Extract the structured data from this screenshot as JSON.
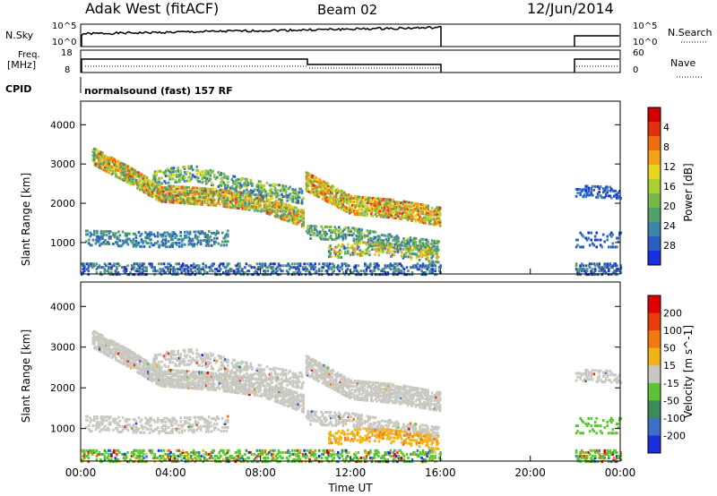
{
  "header": {
    "title": "Adak West (fitACF)",
    "beam": "Beam 02",
    "date": "12/Jun/2014"
  },
  "strip_labels": {
    "nsky": "N.Sky",
    "nsearch": "N.Search",
    "freq_top": "Freq.",
    "freq_unit": "[MHz]",
    "nave": "Nave",
    "cpid": "CPID",
    "cpid_value": "normalsound (fast) 157 RF"
  },
  "noise_axis": {
    "left_top": "10^5",
    "left_bottom": "10^0",
    "right_top": "10^5",
    "right_bottom": "10^0"
  },
  "freq_axis": {
    "left_top": "18",
    "left_bottom": "8",
    "right_top": "60",
    "right_bottom": "0"
  },
  "chart_data": [
    {
      "type": "heatmap",
      "panel": "power",
      "xlabel": "",
      "ylabel": "Slant Range [km]",
      "xlim": [
        0,
        24
      ],
      "ylim": [
        200,
        4600
      ],
      "yticks": [
        "1000",
        "2000",
        "3000",
        "4000"
      ],
      "colorbar": {
        "label": "Power [dB]",
        "ticks": [
          "4",
          "8",
          "12",
          "16",
          "20",
          "24",
          "28"
        ],
        "colors": [
          "#1a2fe0",
          "#2a5ec0",
          "#3d86a8",
          "#52a06a",
          "#78b84a",
          "#a9cf34",
          "#e8d61f",
          "#f4a11a",
          "#ef6d10",
          "#e03010",
          "#d00000"
        ]
      },
      "data_gaps_hours": [
        [
          16,
          22
        ]
      ],
      "description_bands_km": [
        [
          900,
          1250
        ],
        [
          1500,
          2400
        ],
        [
          2400,
          3300
        ]
      ]
    },
    {
      "type": "heatmap",
      "panel": "velocity",
      "xlabel": "Time UT",
      "ylabel": "Slant Range [km]",
      "xlim": [
        0,
        24
      ],
      "ylim": [
        200,
        4600
      ],
      "xticks": [
        "00:00",
        "04:00",
        "08:00",
        "12:00",
        "16:00",
        "20:00",
        "00:00"
      ],
      "yticks": [
        "1000",
        "2000",
        "3000",
        "4000"
      ],
      "colorbar": {
        "label": "Velocity [m s^-1]",
        "ticks": [
          "200",
          "100",
          "50",
          "15",
          "-15",
          "-50",
          "-100",
          "-200"
        ],
        "colors": [
          "#1c2fd8",
          "#3b6fc8",
          "#3a8c5a",
          "#5cc23a",
          "#c8c8c0",
          "#f2b318",
          "#f07a10",
          "#e83c0c",
          "#e00000"
        ]
      }
    }
  ],
  "colors": {
    "ground_scatter": "#c8c8c0",
    "axis": "#000000"
  }
}
